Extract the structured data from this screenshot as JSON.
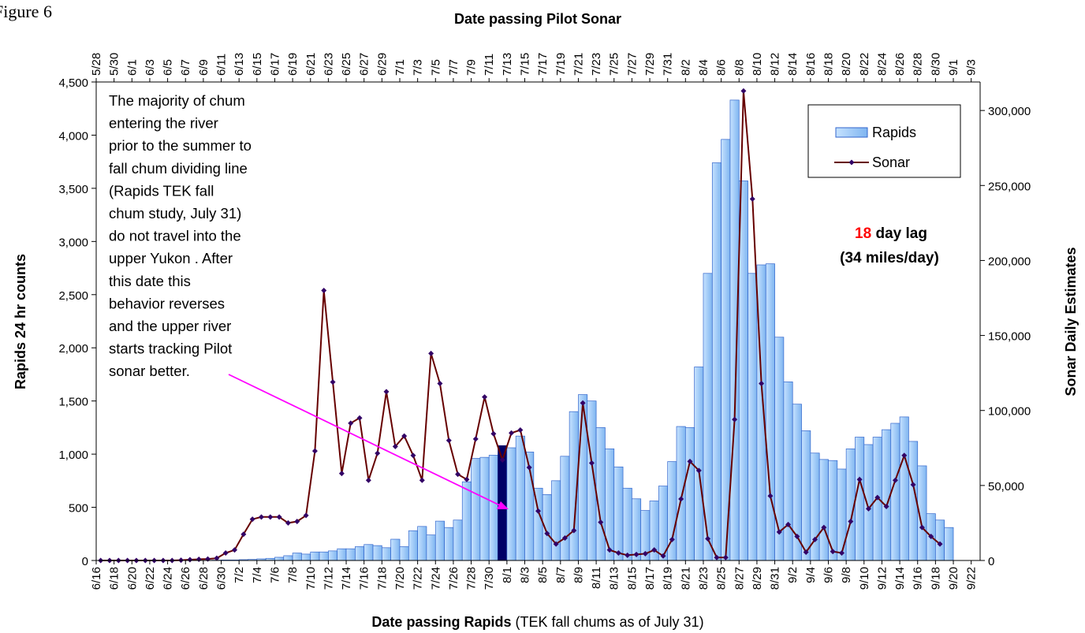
{
  "chart_data": {
    "type": "bar_line",
    "figure_label": "Figure 6",
    "top_axis_title": "Date passing Pilot Sonar",
    "x_axis_title": "Date passing Rapids",
    "x_axis_subtitle": "(TEK fall chums as of July 31)",
    "y_axis_title": "Rapids 24 hr counts",
    "y2_axis_title": "Sonar Daily Estimates",
    "categories": [
      "6/16",
      null,
      "6/18",
      null,
      "6/20",
      null,
      "6/22",
      null,
      "6/24",
      null,
      "6/26",
      null,
      "6/28",
      null,
      "6/30",
      null,
      "7/2",
      null,
      "7/4",
      null,
      "7/6",
      null,
      "7/8",
      null,
      "7/10",
      null,
      "7/12",
      null,
      "7/14",
      null,
      "7/16",
      null,
      "7/18",
      null,
      "7/20",
      null,
      "7/22",
      null,
      "7/24",
      null,
      "7/26",
      null,
      "7/28",
      null,
      "7/30",
      null,
      "8/1",
      null,
      "8/3",
      null,
      "8/5",
      null,
      "8/7",
      null,
      "8/9",
      null,
      "8/11",
      null,
      "8/13",
      null,
      "8/15",
      null,
      "8/17",
      null,
      "8/19",
      null,
      "8/21",
      null,
      "8/23",
      null,
      "8/25",
      null,
      "8/27",
      null,
      "8/29",
      null,
      "8/31",
      null,
      "9/2",
      null,
      "9/4",
      null,
      "9/6",
      null,
      "9/8",
      null,
      "9/10",
      null,
      "9/12",
      null,
      "9/14",
      null,
      "9/16",
      null,
      "9/18",
      null,
      "9/20",
      null,
      "9/22"
    ],
    "top_categories": [
      "5/28",
      null,
      "5/30",
      null,
      "6/1",
      null,
      "6/3",
      null,
      "6/5",
      null,
      "6/7",
      null,
      "6/9",
      null,
      "6/11",
      null,
      "6/13",
      null,
      "6/15",
      null,
      "6/17",
      null,
      "6/19",
      null,
      "6/21",
      null,
      "6/23",
      null,
      "6/25",
      null,
      "6/27",
      null,
      "6/29",
      null,
      "7/1",
      null,
      "7/3",
      null,
      "7/5",
      null,
      "7/7",
      null,
      "7/9",
      null,
      "7/11",
      null,
      "7/13",
      null,
      "7/15",
      null,
      "7/17",
      null,
      "7/19",
      null,
      "7/21",
      null,
      "7/23",
      null,
      "7/25",
      null,
      "7/27",
      null,
      "7/29",
      null,
      "7/31",
      null,
      "8/2",
      null,
      "8/4",
      null,
      "8/6",
      null,
      "8/8",
      null,
      "8/10",
      null,
      "8/12",
      null,
      "8/14",
      null,
      "8/16",
      null,
      "8/18",
      null,
      "8/20",
      null,
      "8/22",
      null,
      "8/24",
      null,
      "8/26",
      null,
      "8/28",
      null,
      "8/30",
      null,
      "9/1",
      null,
      "9/3"
    ],
    "series": [
      {
        "name": "Rapids",
        "type": "bar",
        "color": "#99ccff",
        "edge_color": "#3366cc",
        "values": [
          0,
          0,
          0,
          0,
          0,
          0,
          0,
          0,
          0,
          0,
          0,
          0,
          2,
          3,
          5,
          5,
          8,
          10,
          15,
          20,
          30,
          45,
          70,
          60,
          80,
          80,
          90,
          110,
          110,
          130,
          150,
          140,
          120,
          200,
          130,
          280,
          320,
          240,
          370,
          310,
          380,
          740,
          960,
          970,
          990,
          1080,
          1060,
          1170,
          1020,
          680,
          620,
          750,
          980,
          1400,
          1560,
          1500,
          1250,
          1050,
          880,
          680,
          580,
          470,
          560,
          700,
          930,
          1260,
          1250,
          1820,
          2700,
          3740,
          3960,
          4330,
          3570,
          2700,
          2780,
          2790,
          2100,
          1680,
          1470,
          1220,
          1010,
          950,
          940,
          860,
          1050,
          1160,
          1090,
          1160,
          1230,
          1290,
          1350,
          1120,
          890,
          440,
          380,
          310,
          0,
          0,
          0
        ]
      },
      {
        "name": "Sonar",
        "type": "line",
        "axis": "y2",
        "color": "#660000",
        "marker_color": "#330066",
        "values": [
          0,
          0,
          0,
          0,
          0,
          0,
          0,
          0,
          0,
          200,
          500,
          800,
          1000,
          1500,
          5000,
          7000,
          17500,
          27500,
          29000,
          29000,
          29000,
          25000,
          26000,
          30000,
          73000,
          180000,
          119000,
          58000,
          91500,
          95000,
          53500,
          71500,
          112500,
          76000,
          83000,
          70000,
          53500,
          138000,
          118000,
          80000,
          57500,
          54000,
          81000,
          109000,
          84500,
          67000,
          85000,
          87000,
          62000,
          33000,
          18000,
          11000,
          15000,
          20000,
          105000,
          65000,
          25500,
          7000,
          5000,
          3500,
          4000,
          4500,
          7000,
          3000,
          14000,
          41000,
          66000,
          60000,
          14500,
          2000,
          2000,
          94000,
          313000,
          241000,
          118000,
          43000,
          19000,
          24000,
          16000,
          5500,
          14000,
          22000,
          6000,
          5000,
          26000,
          54000,
          34500,
          42000,
          36000,
          53500,
          70000,
          50500,
          22000,
          16000,
          11000,
          null,
          null,
          null,
          null
        ]
      }
    ],
    "highlight": {
      "category_index": 45,
      "color": "#000066"
    },
    "ylim": [
      0,
      4500
    ],
    "yticks": [
      0,
      500,
      {
        "value": 1000,
        "label": "1,000"
      },
      {
        "value": 1500,
        "label": "1,500"
      },
      {
        "value": 2000,
        "label": "2,000"
      },
      {
        "value": 2500,
        "label": "2,500"
      },
      {
        "value": 3000,
        "label": "3,000"
      },
      {
        "value": 3500,
        "label": "3,500"
      },
      {
        "value": 4000,
        "label": "4,000"
      },
      {
        "value": 4500,
        "label": "4,500"
      }
    ],
    "y2lim": [
      0,
      319000
    ],
    "y2ticks": [
      0,
      {
        "value": 50000,
        "label": "50,000"
      },
      {
        "value": 100000,
        "label": "100,000"
      },
      {
        "value": 150000,
        "label": "150,000"
      },
      {
        "value": 200000,
        "label": "200,000"
      },
      {
        "value": 250000,
        "label": "250,000"
      },
      {
        "value": 300000,
        "label": "300,000"
      }
    ],
    "legend": "upper right",
    "annotation": [
      "The majority of chum",
      "entering the river",
      "prior to the summer to",
      "fall chum dividing line",
      "(Rapids TEK fall",
      "chum study, July 31)",
      "do not travel into the",
      "upper Yukon . After",
      "this date this",
      "behavior reverses",
      "and the upper river",
      "starts tracking Pilot",
      "sonar better."
    ],
    "lag_number": "18",
    "lag_text": "day lag",
    "lag_speed": "(34 miles/day)"
  }
}
